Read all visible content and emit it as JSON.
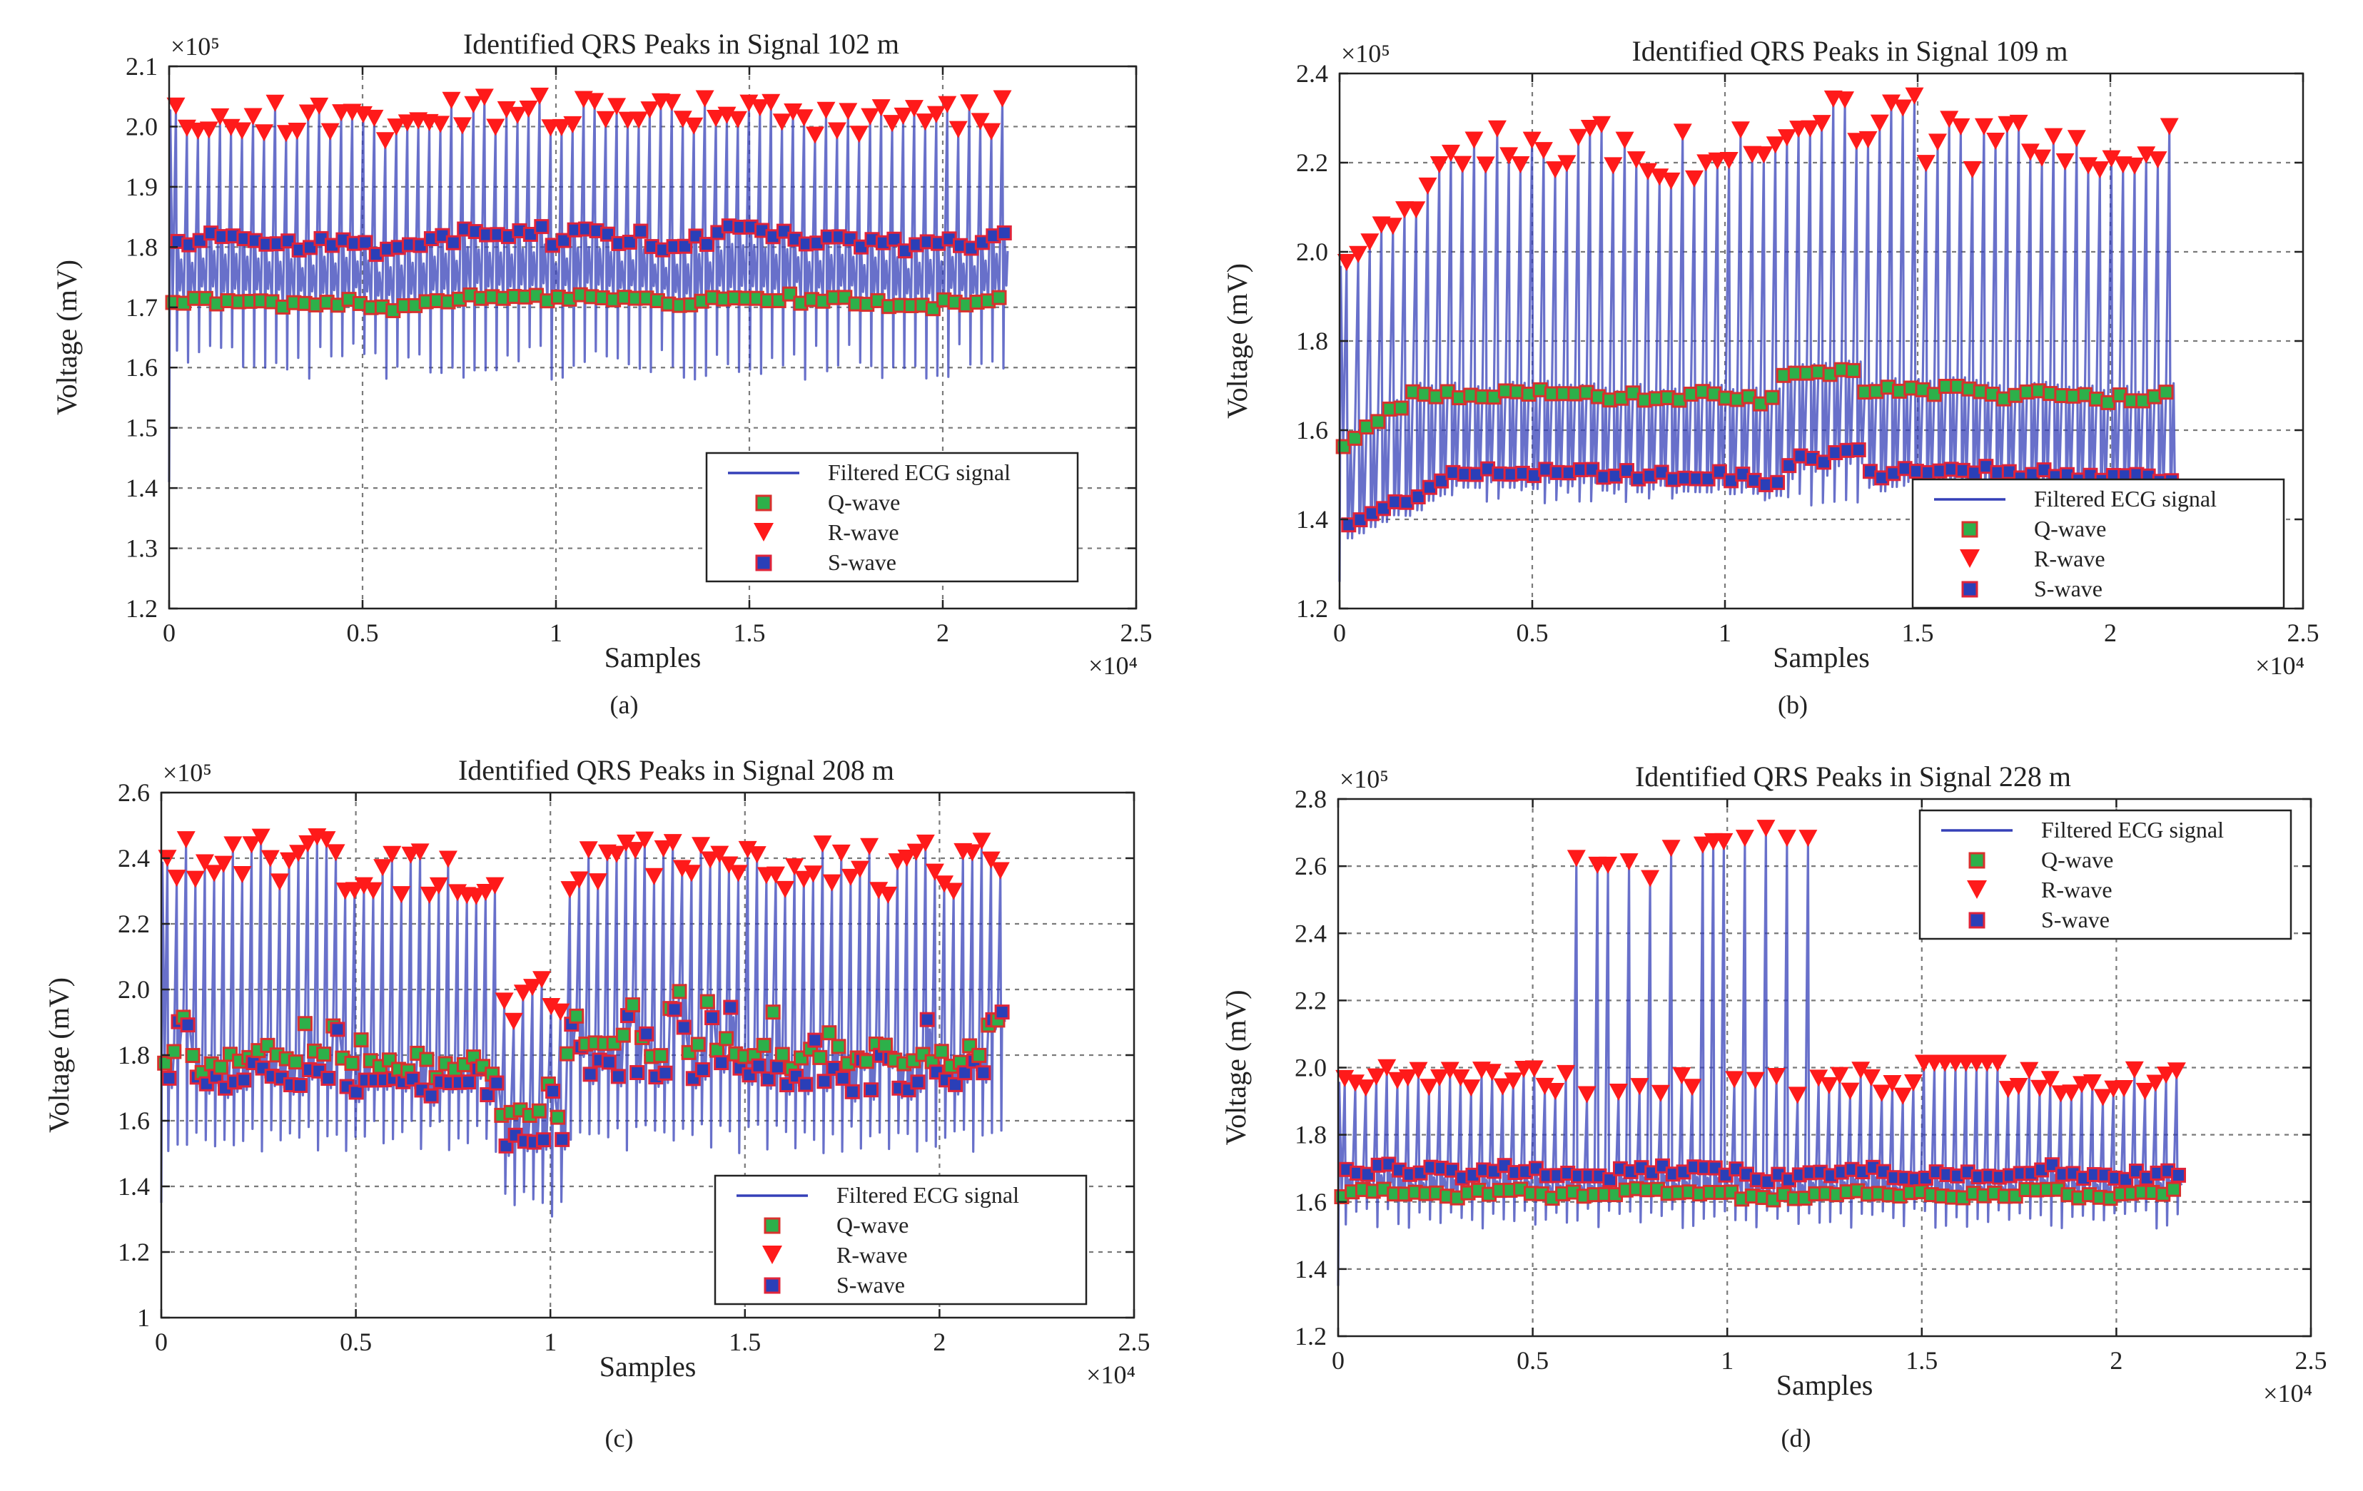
{
  "chart_data": [
    {
      "panel": "(a)",
      "type": "line",
      "title": "Identified QRS Peaks in Signal 102 m",
      "xlabel": "Samples",
      "ylabel": "Voltage (mV)",
      "x_multiplier": "×10⁴",
      "y_multiplier": "×10⁵",
      "xlim": [
        0,
        2.5
      ],
      "ylim": [
        1.2,
        2.1
      ],
      "xticks": [
        0,
        0.5,
        1,
        1.5,
        2,
        2.5
      ],
      "xtick_labels": [
        "0",
        "0.5",
        "1",
        "1.5",
        "2",
        "2.5"
      ],
      "yticks": [
        1.2,
        1.3,
        1.4,
        1.5,
        1.6,
        1.7,
        1.8,
        1.9,
        2.0,
        2.1
      ],
      "ytick_labels": [
        "1.2",
        "1.3",
        "1.4",
        "1.5",
        "1.6",
        "1.7",
        "1.8",
        "1.9",
        "2.0",
        "2.1"
      ],
      "grid": true,
      "legend_position": "bottom-right",
      "signal_range": [
        0,
        2.17
      ],
      "beats": 76,
      "q": [
        1.71,
        0.012
      ],
      "r": [
        2.01,
        0.03
      ],
      "s": [
        1.81,
        0.025
      ],
      "trough": [
        1.61,
        0.03
      ],
      "legend": [
        "Filtered ECG signal",
        "Q-wave",
        "R-wave",
        "S-wave"
      ]
    },
    {
      "panel": "(b)",
      "type": "line",
      "title": "Identified QRS Peaks in Signal 109 m",
      "xlabel": "Samples",
      "ylabel": "Voltage (mV)",
      "x_multiplier": "×10⁴",
      "y_multiplier": "×10⁵",
      "xlim": [
        0,
        2.5
      ],
      "ylim": [
        1.2,
        2.4
      ],
      "xticks": [
        0,
        0.5,
        1,
        1.5,
        2,
        2.5
      ],
      "xtick_labels": [
        "0",
        "0.5",
        "1",
        "1.5",
        "2",
        "2.5"
      ],
      "yticks": [
        1.2,
        1.4,
        1.6,
        1.8,
        2.0,
        2.2,
        2.4
      ],
      "ytick_labels": [
        "1.2",
        "1.4",
        "1.6",
        "1.8",
        "2.0",
        "2.2",
        "2.4"
      ],
      "grid": true,
      "legend_position": "bottom-right",
      "signal_range": [
        0,
        2.17
      ],
      "beats": 72,
      "q": [
        1.68,
        0.02
      ],
      "r": [
        2.22,
        0.06
      ],
      "s": [
        1.5,
        0.025
      ],
      "trough": [
        1.46,
        0.03
      ],
      "legend": [
        "Filtered ECG signal",
        "Q-wave",
        "R-wave",
        "S-wave"
      ]
    },
    {
      "panel": "(c)",
      "type": "line",
      "title": "Identified QRS Peaks in Signal 208 m",
      "xlabel": "Samples",
      "ylabel": "Voltage (mV)",
      "x_multiplier": "×10⁴",
      "y_multiplier": "×10⁵",
      "xlim": [
        0,
        2.5
      ],
      "ylim": [
        1.0,
        2.6
      ],
      "xticks": [
        0,
        0.5,
        1,
        1.5,
        2,
        2.5
      ],
      "xtick_labels": [
        "0",
        "0.5",
        "1",
        "1.5",
        "2",
        "2.5"
      ],
      "yticks": [
        1.0,
        1.2,
        1.4,
        1.6,
        1.8,
        2.0,
        2.2,
        2.4,
        2.6
      ],
      "ytick_labels": [
        "1",
        "1.2",
        "1.4",
        "1.6",
        "1.8",
        "2.0",
        "2.2",
        "2.4",
        "2.6"
      ],
      "grid": true,
      "legend_position": "bottom-right",
      "signal_range": [
        0,
        2.17
      ],
      "beats": 90,
      "q": [
        1.78,
        0.06
      ],
      "r": [
        2.36,
        0.08
      ],
      "s": [
        1.72,
        0.06
      ],
      "trough": [
        1.55,
        0.05
      ],
      "legend": [
        "Filtered ECG signal",
        "Q-wave",
        "R-wave",
        "S-wave"
      ]
    },
    {
      "panel": "(d)",
      "type": "line",
      "title": "Identified QRS Peaks in Signal 228 m",
      "xlabel": "Samples",
      "ylabel": "Voltage (mV)",
      "x_multiplier": "×10⁴",
      "y_multiplier": "×10⁵",
      "xlim": [
        0,
        2.5
      ],
      "ylim": [
        1.2,
        2.8
      ],
      "xticks": [
        0,
        0.5,
        1,
        1.5,
        2,
        2.5
      ],
      "xtick_labels": [
        "0",
        "0.5",
        "1",
        "1.5",
        "2",
        "2.5"
      ],
      "yticks": [
        1.2,
        1.4,
        1.6,
        1.8,
        2.0,
        2.2,
        2.4,
        2.6,
        2.8
      ],
      "ytick_labels": [
        "1.2",
        "1.4",
        "1.6",
        "1.8",
        "2.0",
        "2.2",
        "2.4",
        "2.6",
        "2.8"
      ],
      "grid": true,
      "legend_position": "top-right",
      "signal_range": [
        0,
        2.17
      ],
      "beats": 80,
      "q": [
        1.62,
        0.02
      ],
      "r": [
        1.94,
        0.04
      ],
      "s": [
        1.68,
        0.03
      ],
      "trough": [
        1.55,
        0.03
      ],
      "tall_r": [
        [
          0.62,
          2.61
        ],
        [
          0.68,
          2.59
        ],
        [
          0.74,
          2.6
        ],
        [
          0.8,
          2.55
        ],
        [
          0.86,
          2.64
        ],
        [
          0.93,
          2.65
        ],
        [
          0.98,
          2.66
        ],
        [
          1.04,
          2.67
        ],
        [
          1.1,
          2.7
        ],
        [
          1.16,
          2.67
        ],
        [
          1.22,
          2.67
        ]
      ],
      "legend": [
        "Filtered ECG signal",
        "Q-wave",
        "R-wave",
        "S-wave"
      ]
    }
  ],
  "colors": {
    "signal": "#3540b8",
    "q_fill": "#2db04a",
    "q_edge": "#d8312d",
    "r_fill": "#ff1a1a",
    "s_fill": "#2a3fb8",
    "s_edge": "#e0243a",
    "grid": "#7a7a7a"
  }
}
